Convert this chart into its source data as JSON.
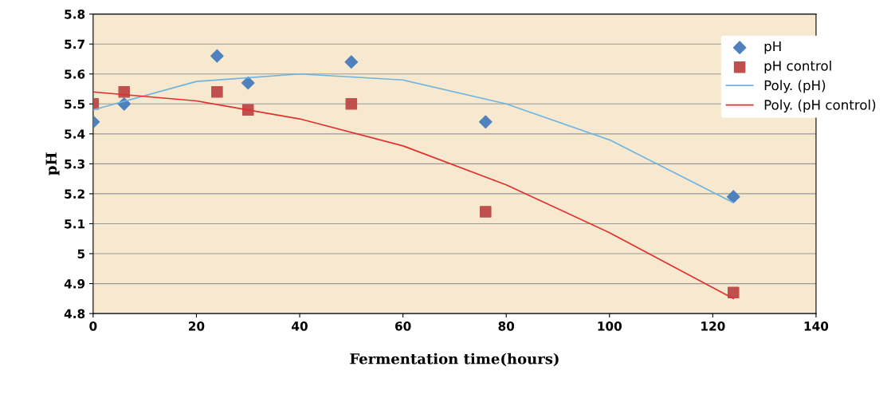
{
  "chart_data": {
    "type": "scatter",
    "xlabel": "Fermentation time(hours)",
    "ylabel": "pH",
    "xlim": [
      0,
      140
    ],
    "xticks": [
      0,
      20,
      40,
      60,
      80,
      100,
      120,
      140
    ],
    "ylim": [
      4.8,
      5.8
    ],
    "yticks": [
      {
        "value": 4.8,
        "label": "4.8"
      },
      {
        "value": 4.9,
        "label": "4.9"
      },
      {
        "value": 5.0,
        "label": "5"
      },
      {
        "value": 5.1,
        "label": "5.1"
      },
      {
        "value": 5.2,
        "label": "5.2"
      },
      {
        "value": 5.3,
        "label": "5.3"
      },
      {
        "value": 5.4,
        "label": "5.4"
      },
      {
        "value": 5.5,
        "label": "5.5"
      },
      {
        "value": 5.6,
        "label": "5.6"
      },
      {
        "value": 5.7,
        "label": "5.7"
      },
      {
        "value": 5.8,
        "label": "5.8"
      }
    ],
    "grid": "y",
    "legend": "top right",
    "series": [
      {
        "name": "pH",
        "marker": "diamond",
        "color": "#4f81bd",
        "x": [
          0,
          6,
          24,
          30,
          50,
          76,
          124
        ],
        "values": [
          5.44,
          5.5,
          5.66,
          5.57,
          5.64,
          5.44,
          5.19
        ]
      },
      {
        "name": "pH control",
        "marker": "square",
        "color": "#c0504d",
        "x": [
          0,
          6,
          24,
          30,
          50,
          76,
          124
        ],
        "values": [
          5.5,
          5.54,
          5.54,
          5.48,
          5.5,
          5.14,
          4.87
        ]
      },
      {
        "name": "Poly. (pH)",
        "type": "line",
        "color": "#6fb3e0",
        "x": [
          0,
          20,
          40,
          60,
          80,
          100,
          124
        ],
        "values": [
          5.48,
          5.575,
          5.6,
          5.58,
          5.5,
          5.38,
          5.17
        ]
      },
      {
        "name": "Poly. (pH control)",
        "type": "line",
        "color": "#e03030",
        "x": [
          0,
          20,
          40,
          60,
          80,
          100,
          124
        ],
        "values": [
          5.54,
          5.51,
          5.45,
          5.36,
          5.23,
          5.07,
          4.85
        ]
      }
    ]
  }
}
